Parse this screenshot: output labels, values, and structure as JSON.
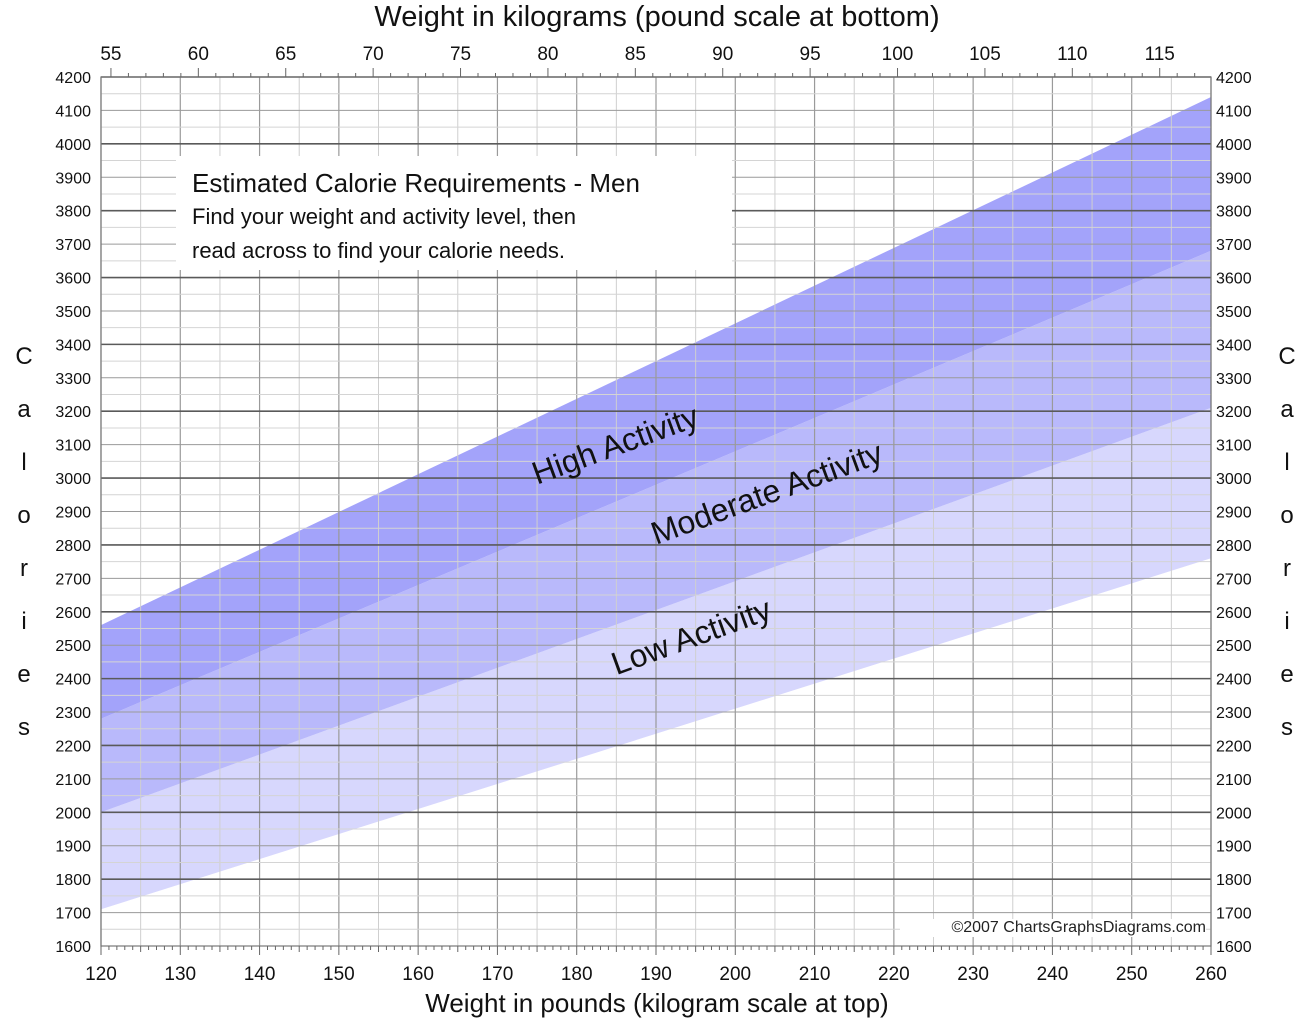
{
  "chart_data": {
    "type": "area",
    "title": "Estimated Calorie Requirements - Men",
    "subtitle_lines": [
      "Find your weight and activity level, then",
      "read across to find your calorie needs."
    ],
    "top_axis_title": "Weight in kilograms (pound scale at bottom)",
    "bottom_axis_title": "Weight in pounds (kilogram scale at top)",
    "ylabel": "Calories",
    "xlim": [
      120,
      260
    ],
    "ylim": [
      1600,
      4200
    ],
    "x_ticks": [
      120,
      130,
      140,
      150,
      160,
      170,
      180,
      190,
      200,
      210,
      220,
      230,
      240,
      250,
      260
    ],
    "x_top_ticks": [
      55,
      60,
      65,
      70,
      75,
      80,
      85,
      90,
      95,
      100,
      105,
      110,
      115
    ],
    "y_ticks": [
      1600,
      1700,
      1800,
      1900,
      2000,
      2100,
      2200,
      2300,
      2400,
      2500,
      2600,
      2700,
      2800,
      2900,
      3000,
      3100,
      3200,
      3300,
      3400,
      3500,
      3600,
      3700,
      3800,
      3900,
      4000,
      4100,
      4200
    ],
    "grid": true,
    "x": [
      120,
      260
    ],
    "series": [
      {
        "name": "Low Activity",
        "lower": [
          1710,
          2760
        ],
        "upper": [
          2000,
          3210
        ],
        "color": "#d7d7fd"
      },
      {
        "name": "Moderate Activity",
        "lower": [
          2000,
          3210
        ],
        "upper": [
          2280,
          3680
        ],
        "color": "#b9b9fb"
      },
      {
        "name": "High Activity",
        "lower": [
          2280,
          3680
        ],
        "upper": [
          2560,
          4140
        ],
        "color": "#a3a3fa"
      }
    ],
    "band_labels": [
      {
        "text": "High Activity",
        "x": 175,
        "y": 2980
      },
      {
        "text": "Moderate Activity",
        "x": 190,
        "y": 2800
      },
      {
        "text": "Low Activity",
        "x": 185,
        "y": 2410
      }
    ],
    "annotation": "©2007 ChartsGraphsDiagrams.com"
  }
}
